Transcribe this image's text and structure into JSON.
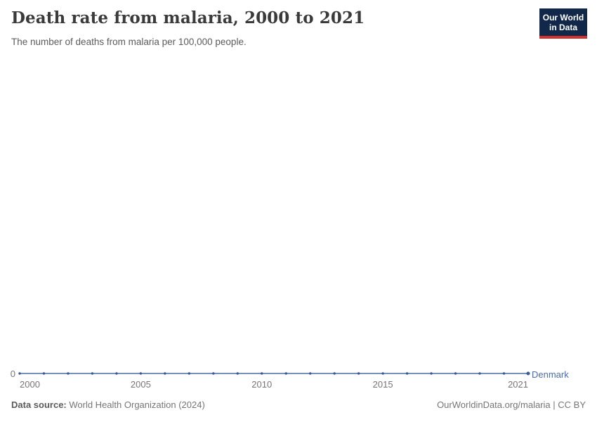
{
  "header": {
    "title": "Death rate from malaria, 2000 to 2021",
    "subtitle": "The number of deaths from malaria per 100,000 people."
  },
  "logo": {
    "line1": "Our World",
    "line2": "in Data",
    "background_color": "#12284a",
    "accent_color": "#d0312d"
  },
  "chart_data": {
    "type": "line",
    "title": "Death rate from malaria, 2000 to 2021",
    "subtitle": "The number of deaths from malaria per 100,000 people.",
    "x": [
      2000,
      2001,
      2002,
      2003,
      2004,
      2005,
      2006,
      2007,
      2008,
      2009,
      2010,
      2011,
      2012,
      2013,
      2014,
      2015,
      2016,
      2017,
      2018,
      2019,
      2020,
      2021
    ],
    "x_ticks": [
      2000,
      2005,
      2010,
      2015,
      2021
    ],
    "y_ticks": [
      0
    ],
    "ylim": [
      0,
      0
    ],
    "grid": false,
    "legend_position": "right-of-line-end",
    "series": [
      {
        "name": "Denmark",
        "values": [
          0,
          0,
          0,
          0,
          0,
          0,
          0,
          0,
          0,
          0,
          0,
          0,
          0,
          0,
          0,
          0,
          0,
          0,
          0,
          0,
          0,
          0
        ],
        "color": "#4c6ba8",
        "marker_color": "#3a5a99"
      }
    ]
  },
  "footer": {
    "data_source_label": "Data source:",
    "data_source_value": " World Health Organization (2024)",
    "right_text": "OurWorldinData.org/malaria | CC BY"
  }
}
